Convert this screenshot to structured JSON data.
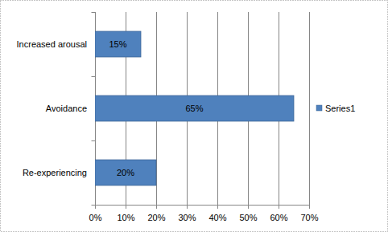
{
  "chart_data": {
    "type": "bar",
    "orientation": "horizontal",
    "categories": [
      "Re-experiencing",
      "Avoidance",
      "Increased arousal"
    ],
    "series": [
      {
        "name": "Series1",
        "color": "#4f81bd",
        "values": [
          20,
          65,
          15
        ],
        "value_labels": [
          "20%",
          "65%",
          "15%"
        ]
      }
    ],
    "xlim": [
      0,
      70
    ],
    "xticks": [
      {
        "value": 0,
        "label": "0%"
      },
      {
        "value": 10,
        "label": "10%"
      },
      {
        "value": 20,
        "label": "20%"
      },
      {
        "value": 30,
        "label": "30%"
      },
      {
        "value": 40,
        "label": "40%"
      },
      {
        "value": 50,
        "label": "50%"
      },
      {
        "value": 60,
        "label": "60%"
      },
      {
        "value": 70,
        "label": "70%"
      }
    ],
    "grid": true,
    "legend": "right",
    "data_labels": true
  }
}
